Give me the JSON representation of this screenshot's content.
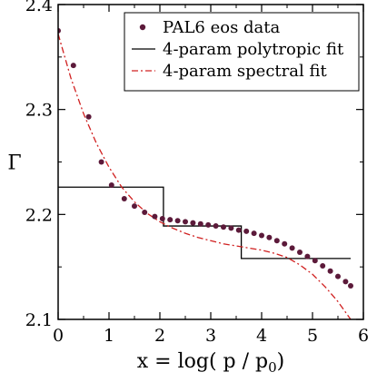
{
  "chart_data": {
    "type": "scatter",
    "xlabel_main": "x = log( p / p",
    "xlabel_sub": "0",
    "xlabel_close": ")",
    "ylabel": "Γ",
    "xlim": [
      0,
      6
    ],
    "ylim": [
      2.1,
      2.4
    ],
    "x_ticks": [
      0,
      1,
      2,
      3,
      4,
      5,
      6
    ],
    "x_tick_labels": [
      "0",
      "1",
      "2",
      "3",
      "4",
      "5",
      "6"
    ],
    "y_ticks": [
      2.1,
      2.2,
      2.3,
      2.4
    ],
    "y_tick_labels": [
      "2.1",
      "2.2",
      "2.3",
      "2.4"
    ],
    "legend_position": "top-right",
    "series": [
      {
        "name": "PAL6 eos data",
        "kind": "points",
        "color": "#5c1a3a",
        "x": [
          0.0,
          0.3,
          0.6,
          0.85,
          1.05,
          1.3,
          1.5,
          1.7,
          1.9,
          2.05,
          2.2,
          2.35,
          2.5,
          2.65,
          2.8,
          2.95,
          3.1,
          3.25,
          3.4,
          3.55,
          3.7,
          3.85,
          4.0,
          4.15,
          4.3,
          4.45,
          4.6,
          4.75,
          4.9,
          5.05,
          5.2,
          5.35,
          5.5,
          5.65,
          5.75
        ],
        "y": [
          2.375,
          2.342,
          2.293,
          2.25,
          2.228,
          2.215,
          2.208,
          2.202,
          2.198,
          2.196,
          2.195,
          2.194,
          2.193,
          2.192,
          2.191,
          2.19,
          2.189,
          2.188,
          2.187,
          2.185,
          2.184,
          2.182,
          2.18,
          2.178,
          2.175,
          2.172,
          2.168,
          2.164,
          2.16,
          2.156,
          2.151,
          2.146,
          2.141,
          2.136,
          2.132
        ]
      },
      {
        "name": "4-param polytropic fit",
        "kind": "step",
        "color": "#000000",
        "x": [
          0,
          2.07,
          2.07,
          3.6,
          3.6,
          5.75
        ],
        "y": [
          2.226,
          2.226,
          2.189,
          2.189,
          2.158,
          2.158
        ]
      },
      {
        "name": "4-param spectral fit",
        "kind": "dashdot",
        "color": "#d02020",
        "x": [
          0.0,
          0.25,
          0.5,
          0.75,
          1.0,
          1.25,
          1.5,
          1.75,
          2.0,
          2.25,
          2.5,
          2.75,
          3.0,
          3.25,
          3.5,
          3.75,
          4.0,
          4.25,
          4.5,
          4.75,
          5.0,
          5.25,
          5.5,
          5.75
        ],
        "y": [
          2.372,
          2.33,
          2.296,
          2.268,
          2.245,
          2.226,
          2.212,
          2.201,
          2.193,
          2.187,
          2.182,
          2.178,
          2.175,
          2.172,
          2.17,
          2.168,
          2.166,
          2.163,
          2.159,
          2.152,
          2.143,
          2.131,
          2.117,
          2.1
        ]
      }
    ]
  }
}
